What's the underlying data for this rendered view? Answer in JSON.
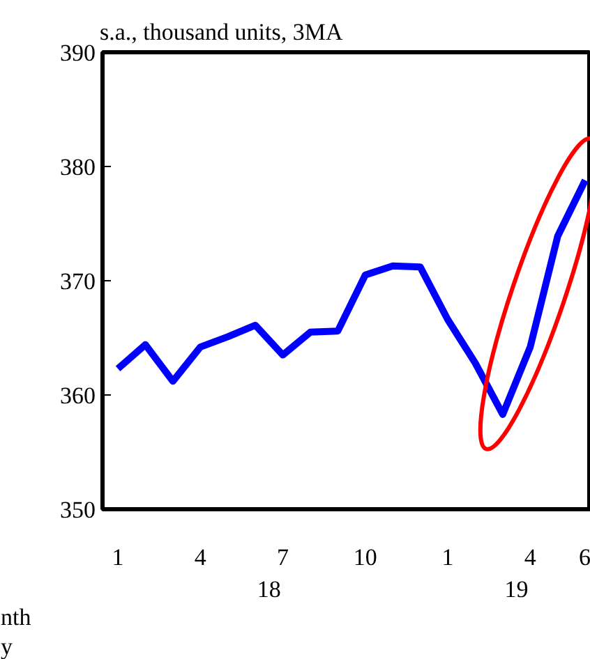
{
  "chart_data": {
    "type": "line",
    "title": "s.a., thousand units, 3MA",
    "categories": [
      "1",
      null,
      null,
      "4",
      null,
      null,
      "7",
      null,
      null,
      "10",
      null,
      null,
      "1",
      null,
      null,
      "4",
      null,
      "6"
    ],
    "series": [
      {
        "color": "#0000ff",
        "values": [
          362.3,
          364.4,
          361.2,
          364.2,
          365.1,
          366.1,
          363.5,
          365.5,
          365.6,
          370.5,
          371.3,
          371.2,
          366.6,
          362.8,
          358.3,
          364.2,
          373.9,
          378.8
        ]
      }
    ],
    "ylim": [
      350,
      390
    ],
    "yticks": [
      350,
      360,
      370,
      380,
      390
    ],
    "grid": false,
    "marker": "none",
    "line_style": "solid",
    "annotations": [
      "18",
      "19",
      "nth",
      "y"
    ]
  }
}
